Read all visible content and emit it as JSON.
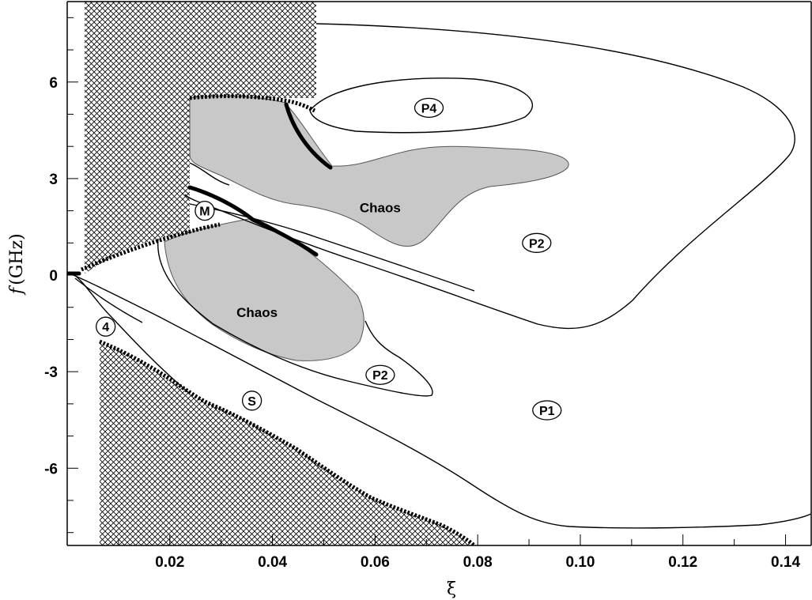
{
  "chart_data": {
    "type": "scatter",
    "xlabel": "ξ",
    "ylabel_italic": "f",
    "ylabel_unit": "(GHz)",
    "xlim": [
      0,
      0.145
    ],
    "ylim": [
      -8.4,
      8.5
    ],
    "x_ticks": [
      {
        "value": 0.02,
        "label": "0.02"
      },
      {
        "value": 0.04,
        "label": "0.04"
      },
      {
        "value": 0.06,
        "label": "0.06"
      },
      {
        "value": 0.08,
        "label": "0.08"
      },
      {
        "value": 0.1,
        "label": "0.10"
      },
      {
        "value": 0.12,
        "label": "0.12"
      },
      {
        "value": 0.14,
        "label": "0.14"
      }
    ],
    "y_ticks": [
      {
        "value": 6,
        "label": "6"
      },
      {
        "value": 3,
        "label": "3"
      },
      {
        "value": 0,
        "label": "0"
      },
      {
        "value": -3,
        "label": "-3"
      },
      {
        "value": -6,
        "label": "-6"
      }
    ],
    "grid": false,
    "region_labels": [
      {
        "text": "P4",
        "x": 0.0705,
        "y": 5.2,
        "circled": true
      },
      {
        "text": "P2",
        "x": 0.0915,
        "y": 1.0,
        "circled": true
      },
      {
        "text": "M",
        "x": 0.0268,
        "y": 2.0,
        "circled": true
      },
      {
        "text": "4",
        "x": 0.0075,
        "y": -1.6,
        "circled": true
      },
      {
        "text": "S",
        "x": 0.036,
        "y": -3.9,
        "circled": true
      },
      {
        "text": "P2",
        "x": 0.061,
        "y": -3.1,
        "circled": true
      },
      {
        "text": "P1",
        "x": 0.0935,
        "y": -4.2,
        "circled": true
      },
      {
        "text": "Chaos",
        "x": 0.061,
        "y": 2.1,
        "circled": false
      },
      {
        "text": "Chaos",
        "x": 0.037,
        "y": -1.15,
        "circled": false
      }
    ],
    "hatched_regions": [
      {
        "x": [
          0.0035,
          0.0485
        ],
        "y": [
          0.0,
          8.5
        ]
      },
      {
        "x": [
          0.0065,
          0.0795
        ],
        "y": [
          -8.4,
          -2.1
        ]
      }
    ],
    "colors": {
      "chaos_fill": "#c8c8c8",
      "line": "#000000",
      "hatch": "#000000"
    }
  }
}
